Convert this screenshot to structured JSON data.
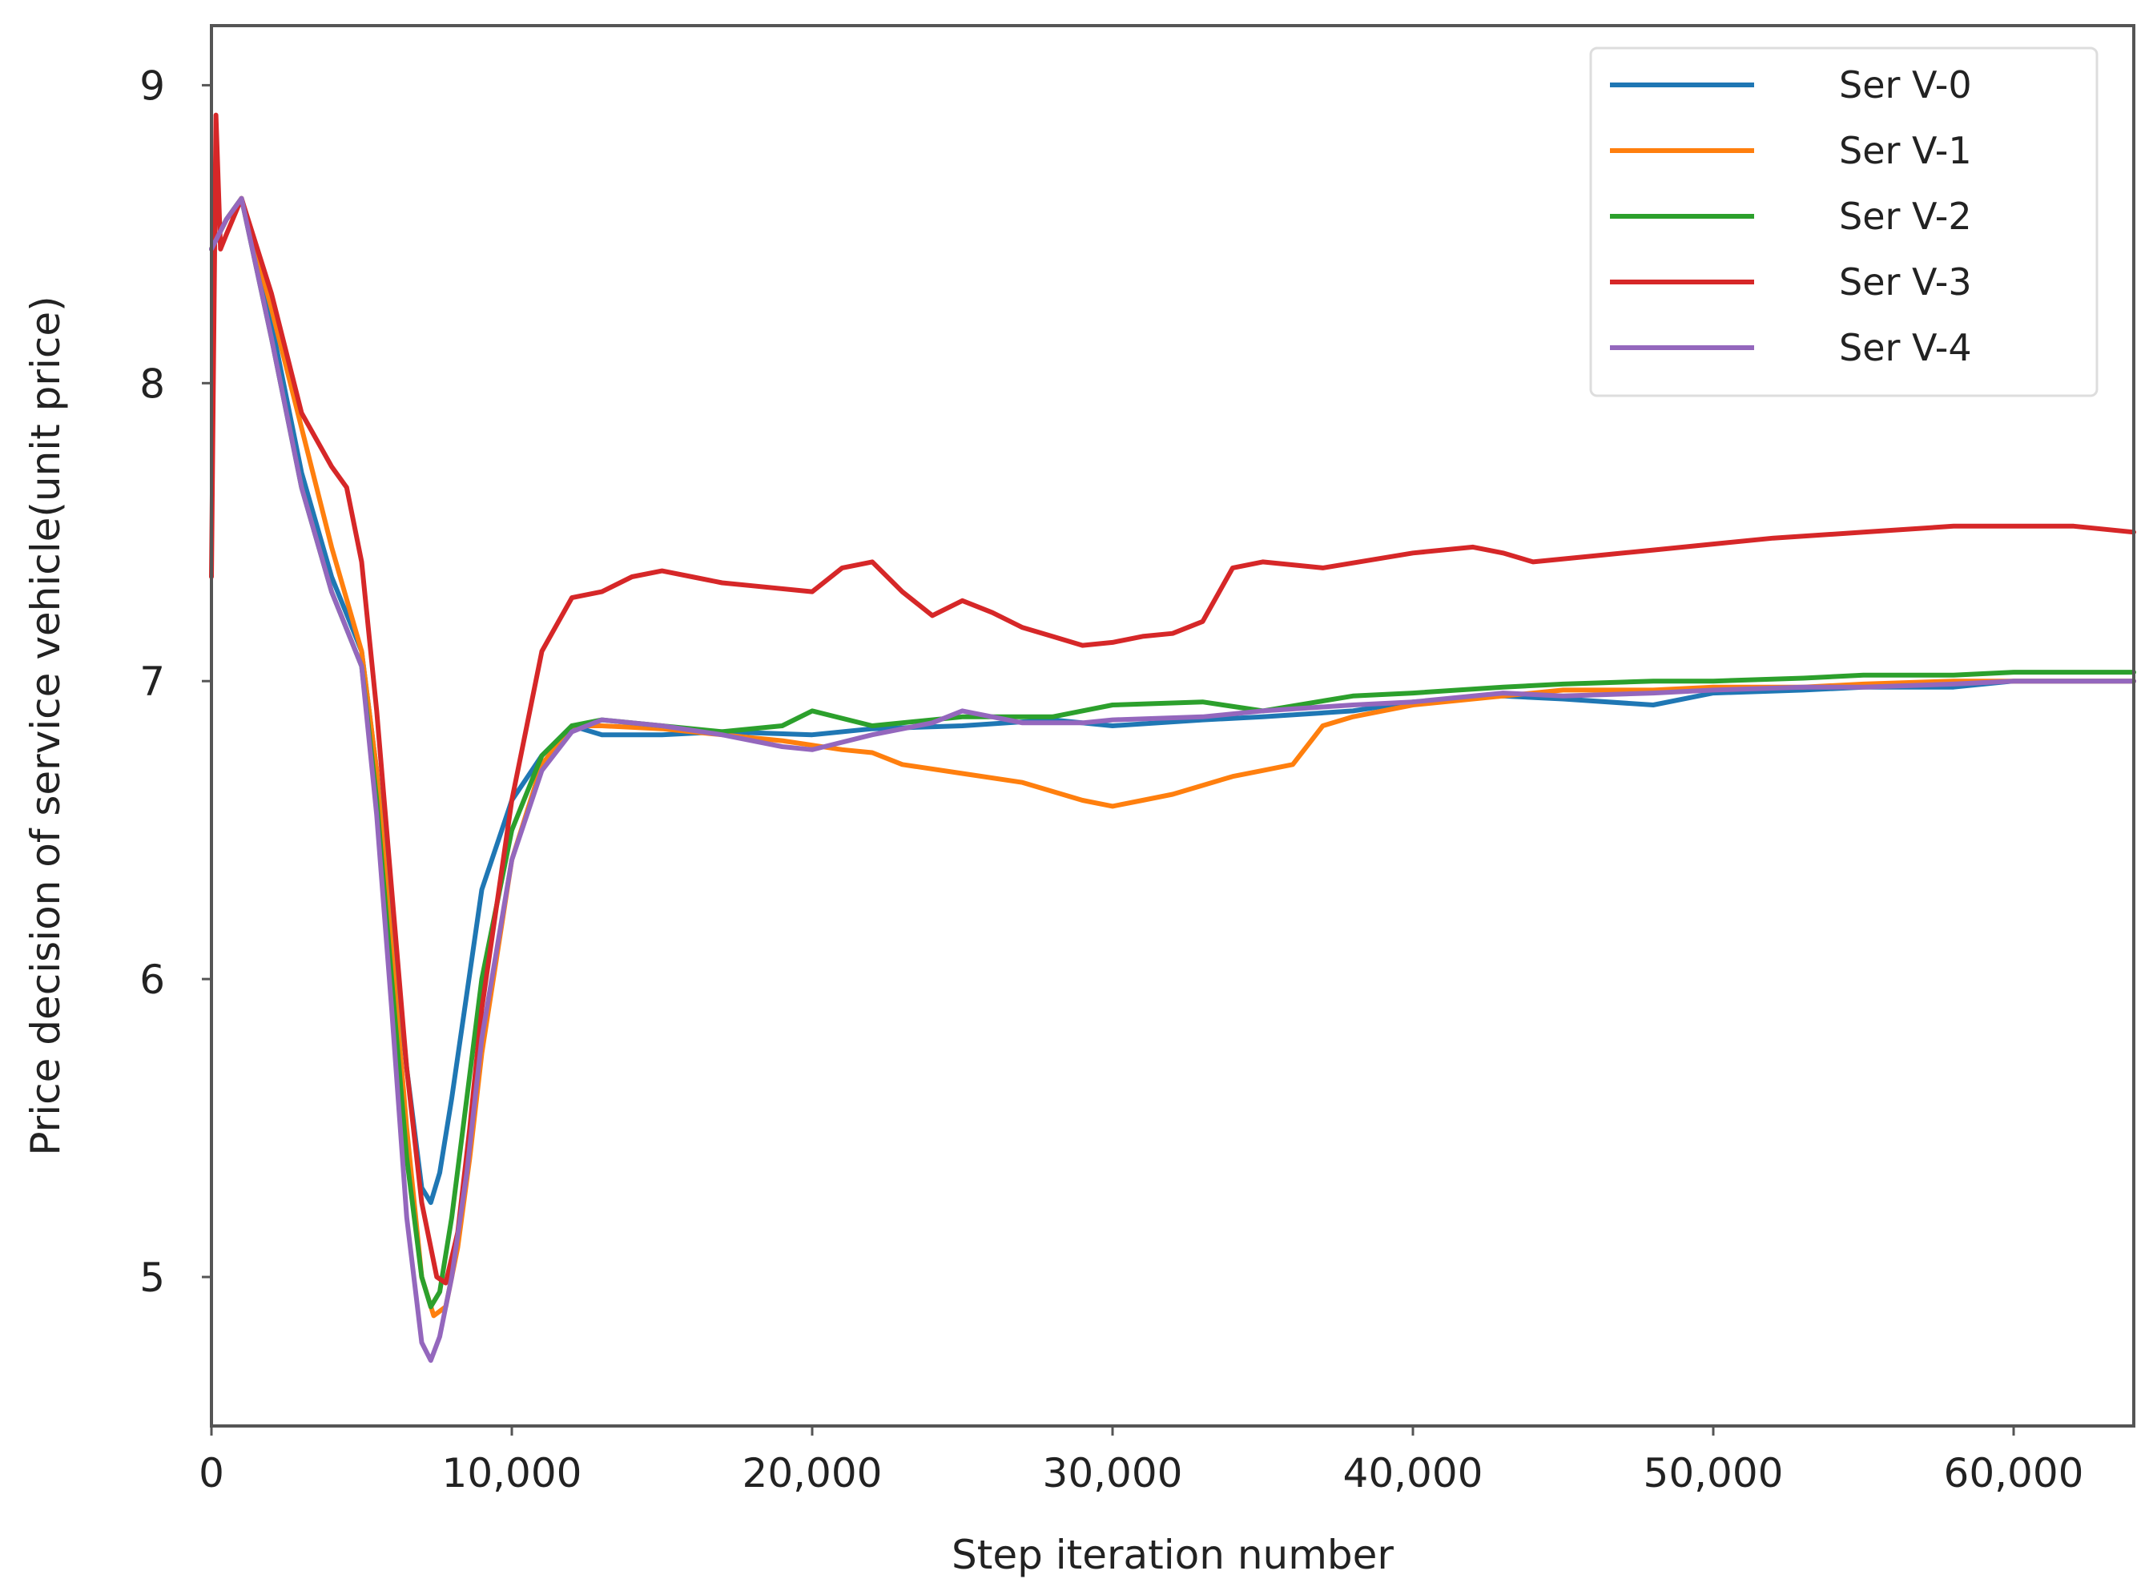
{
  "chart_data": {
    "type": "line",
    "title": "",
    "xlabel": "Step iteration number",
    "ylabel": "Price decision of service vehicle(unit price)",
    "xlim": [
      0,
      64000
    ],
    "ylim": [
      4.5,
      9.2
    ],
    "xticks": [
      0,
      10000,
      20000,
      30000,
      40000,
      50000,
      60000
    ],
    "xtick_labels": [
      "0",
      "10,000",
      "20,000",
      "30,000",
      "40,000",
      "50,000",
      "60,000"
    ],
    "yticks": [
      5,
      6,
      7,
      8,
      9
    ],
    "ytick_labels": [
      "5",
      "6",
      "7",
      "8",
      "9"
    ],
    "grid": false,
    "legend_position": "top-right",
    "series": [
      {
        "name": "Ser  V-0",
        "color": "#1f77b4",
        "x": [
          0,
          500,
          1000,
          2000,
          3000,
          4000,
          5000,
          5500,
          6000,
          6500,
          7000,
          7300,
          7600,
          8000,
          8500,
          9000,
          10000,
          11000,
          12000,
          13000,
          15000,
          17000,
          20000,
          22000,
          25000,
          28000,
          30000,
          33000,
          35000,
          38000,
          40000,
          43000,
          45000,
          48000,
          50000,
          53000,
          55000,
          58000,
          60000,
          62000,
          64000
        ],
        "y": [
          8.45,
          8.55,
          8.62,
          8.2,
          7.7,
          7.35,
          7.1,
          6.7,
          6.2,
          5.7,
          5.3,
          5.25,
          5.35,
          5.6,
          5.95,
          6.3,
          6.6,
          6.75,
          6.85,
          6.82,
          6.82,
          6.83,
          6.82,
          6.84,
          6.85,
          6.87,
          6.85,
          6.87,
          6.88,
          6.9,
          6.93,
          6.95,
          6.94,
          6.92,
          6.96,
          6.97,
          6.98,
          6.98,
          7.0,
          7.0,
          7.0
        ]
      },
      {
        "name": "Ser  V-1",
        "color": "#ff7f0e",
        "x": [
          0,
          500,
          1000,
          2000,
          3000,
          4000,
          5000,
          5500,
          6000,
          6500,
          7000,
          7400,
          7800,
          8200,
          8600,
          9000,
          10000,
          11000,
          12000,
          13000,
          15000,
          17000,
          19000,
          21000,
          22000,
          23000,
          25000,
          27000,
          29000,
          30000,
          31000,
          32000,
          33000,
          34000,
          35000,
          36000,
          37000,
          38000,
          40000,
          43000,
          45000,
          48000,
          50000,
          53000,
          55000,
          58000,
          60000,
          62000,
          64000
        ],
        "y": [
          8.45,
          8.55,
          8.62,
          8.25,
          7.85,
          7.45,
          7.1,
          6.7,
          6.1,
          5.5,
          5.0,
          4.87,
          4.9,
          5.1,
          5.4,
          5.75,
          6.4,
          6.72,
          6.85,
          6.85,
          6.84,
          6.82,
          6.8,
          6.77,
          6.76,
          6.72,
          6.69,
          6.66,
          6.6,
          6.58,
          6.6,
          6.62,
          6.65,
          6.68,
          6.7,
          6.72,
          6.85,
          6.88,
          6.92,
          6.95,
          6.97,
          6.97,
          6.98,
          6.98,
          6.99,
          7.0,
          7.0,
          7.0,
          7.0
        ]
      },
      {
        "name": "Ser  V-2",
        "color": "#2ca02c",
        "x": [
          0,
          500,
          1000,
          2000,
          3000,
          4000,
          5000,
          5500,
          6000,
          6500,
          7000,
          7300,
          7600,
          8000,
          8500,
          9000,
          10000,
          11000,
          12000,
          13000,
          15000,
          17000,
          19000,
          20000,
          22000,
          25000,
          28000,
          30000,
          33000,
          35000,
          38000,
          40000,
          43000,
          45000,
          48000,
          50000,
          53000,
          55000,
          58000,
          60000,
          62000,
          64000
        ],
        "y": [
          8.45,
          8.55,
          8.62,
          8.15,
          7.65,
          7.3,
          7.05,
          6.6,
          6.0,
          5.4,
          5.0,
          4.9,
          4.95,
          5.2,
          5.6,
          6.0,
          6.5,
          6.75,
          6.85,
          6.87,
          6.85,
          6.83,
          6.85,
          6.9,
          6.85,
          6.88,
          6.88,
          6.92,
          6.93,
          6.9,
          6.95,
          6.96,
          6.98,
          6.99,
          7.0,
          7.0,
          7.01,
          7.02,
          7.02,
          7.03,
          7.03,
          7.03
        ]
      },
      {
        "name": "Ser  V-3",
        "color": "#d62728",
        "x": [
          0,
          150,
          300,
          500,
          1000,
          2000,
          3000,
          4000,
          4500,
          5000,
          5500,
          6000,
          6500,
          7000,
          7500,
          7800,
          8200,
          8600,
          9000,
          10000,
          11000,
          12000,
          13000,
          14000,
          15000,
          16000,
          17000,
          18000,
          20000,
          21000,
          22000,
          23000,
          24000,
          25000,
          26000,
          27000,
          28000,
          29000,
          30000,
          31000,
          32000,
          33000,
          34000,
          35000,
          37000,
          40000,
          42000,
          43000,
          44000,
          46000,
          48000,
          50000,
          52000,
          55000,
          58000,
          60000,
          62000,
          64000
        ],
        "y": [
          7.35,
          8.9,
          8.45,
          8.5,
          8.62,
          8.3,
          7.9,
          7.72,
          7.65,
          7.4,
          6.9,
          6.3,
          5.7,
          5.25,
          5.0,
          4.98,
          5.15,
          5.5,
          5.9,
          6.6,
          7.1,
          7.28,
          7.3,
          7.35,
          7.37,
          7.35,
          7.33,
          7.32,
          7.3,
          7.38,
          7.4,
          7.3,
          7.22,
          7.27,
          7.23,
          7.18,
          7.15,
          7.12,
          7.13,
          7.15,
          7.16,
          7.2,
          7.38,
          7.4,
          7.38,
          7.43,
          7.45,
          7.43,
          7.4,
          7.42,
          7.44,
          7.46,
          7.48,
          7.5,
          7.52,
          7.52,
          7.52,
          7.5
        ]
      },
      {
        "name": "Ser  V-4",
        "color": "#9467bd",
        "x": [
          0,
          500,
          1000,
          2000,
          3000,
          4000,
          5000,
          5500,
          6000,
          6500,
          7000,
          7300,
          7600,
          8000,
          8500,
          9000,
          10000,
          11000,
          12000,
          13000,
          15000,
          17000,
          19000,
          20000,
          22000,
          24000,
          25000,
          27000,
          29000,
          30000,
          33000,
          35000,
          38000,
          40000,
          43000,
          45000,
          48000,
          50000,
          53000,
          55000,
          58000,
          60000,
          62000,
          64000
        ],
        "y": [
          8.45,
          8.55,
          8.62,
          8.15,
          7.65,
          7.3,
          7.05,
          6.55,
          5.9,
          5.2,
          4.78,
          4.72,
          4.8,
          5.0,
          5.35,
          5.8,
          6.4,
          6.7,
          6.83,
          6.87,
          6.85,
          6.82,
          6.78,
          6.77,
          6.82,
          6.86,
          6.9,
          6.86,
          6.86,
          6.87,
          6.88,
          6.9,
          6.92,
          6.93,
          6.96,
          6.95,
          6.96,
          6.97,
          6.98,
          6.98,
          6.99,
          7.0,
          7.0,
          7.0
        ]
      }
    ]
  }
}
